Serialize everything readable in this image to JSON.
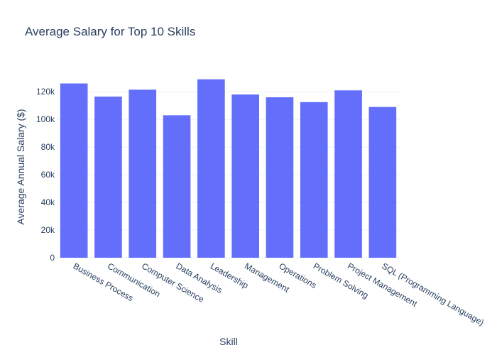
{
  "chart_data": {
    "type": "bar",
    "title": "Average Salary for Top 10 Skills",
    "xlabel": "Skill",
    "ylabel": "Average Annual Salary ($)",
    "categories": [
      "Business Process",
      "Communication",
      "Computer Science",
      "Data Analysis",
      "Leadership",
      "Management",
      "Operations",
      "Problem Solving",
      "Project Management",
      "SQL (Programming Language)"
    ],
    "values": [
      126000,
      116500,
      121500,
      103000,
      129000,
      118000,
      116000,
      112500,
      121000,
      109000
    ],
    "ylim": [
      0,
      135000
    ],
    "yticks": [
      0,
      20000,
      40000,
      60000,
      80000,
      100000,
      120000
    ],
    "ytick_labels": [
      "0",
      "20k",
      "40k",
      "60k",
      "80k",
      "100k",
      "120k"
    ],
    "bar_color": "#636efa",
    "grid_color": "#ebf0f8",
    "grid": true,
    "legend": "none"
  }
}
